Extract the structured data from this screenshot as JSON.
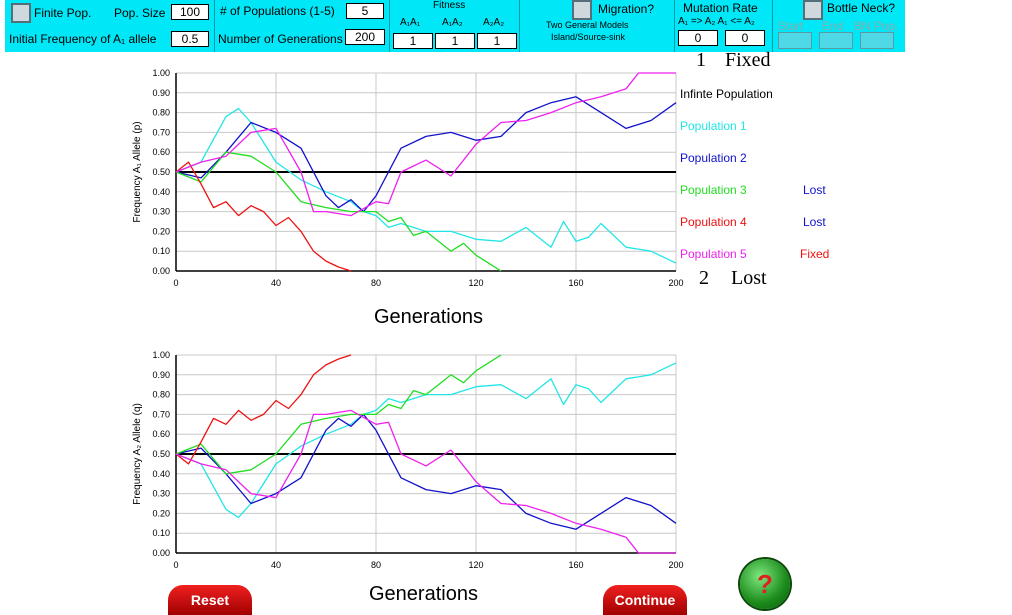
{
  "toolbar": {
    "finite_pop": "Finite Pop.",
    "pop_size_label": "Pop. Size",
    "pop_size": "100",
    "num_pops_label": "# of Populations (1-5)",
    "num_pops": "5",
    "init_freq_label": "Initial  Frequency  of A₁ allele",
    "init_freq": "0.5",
    "num_gens_label": "Number of Generations",
    "num_gens": "200",
    "fitness_label": "Fitness",
    "g11": "A₁A₁",
    "g12": "A₁A₂",
    "g22": "A₂A₂",
    "w11": "1",
    "w12": "1",
    "w22": "1",
    "migration_label": "Migration?",
    "two_models": "Two General Models",
    "island": "Island/Source-sink",
    "mutation_label": "Mutation Rate",
    "mutation_dir": "A₁ => A₂ A₁ <= A₂",
    "mu1": "0",
    "mu2": "0",
    "bottleneck_label": "Bottle Neck?",
    "start": "Start",
    "end": "End",
    "bn_pop": "BN Pop."
  },
  "summary": {
    "fixed_count": "1",
    "fixed_label": "Fixed",
    "lost_count": "2",
    "lost_label": "Lost"
  },
  "legend": {
    "infinite": "Infinte Population",
    "p1": "Population 1",
    "p2": "Population 2",
    "p3": "Population 3",
    "p4": "Population 4",
    "p5": "Population 5",
    "p3_status": "Lost",
    "p4_status": "Lost",
    "p5_status": "Fixed"
  },
  "buttons": {
    "reset": "Reset",
    "continue": "Continue",
    "help": "?"
  },
  "colors": {
    "toolbar": "#00e8f8",
    "infinite": "#000000",
    "p1": "#22e6e6",
    "p2": "#1111cc",
    "p3": "#22dd22",
    "p4": "#ee1111",
    "p5": "#ee22ee"
  },
  "chart_data": [
    {
      "type": "line",
      "title": "",
      "xlabel": "Generations",
      "ylabel": "Frequency A₁ Allele (p)",
      "xlim": [
        0,
        200
      ],
      "ylim": [
        0,
        1
      ],
      "x_ticks": [
        "0",
        "40",
        "80",
        "120",
        "160",
        "200"
      ],
      "y_ticks": [
        "0.00",
        "0.10",
        "0.20",
        "0.30",
        "0.40",
        "0.50",
        "0.60",
        "0.70",
        "0.80",
        "0.90",
        "1.00"
      ],
      "grid": true,
      "series": [
        {
          "name": "Infinte Population",
          "color": "#000000",
          "x": [
            0,
            200
          ],
          "y": [
            0.5,
            0.5
          ]
        },
        {
          "name": "Population 1",
          "color": "#22e6e6",
          "x": [
            0,
            10,
            20,
            25,
            30,
            40,
            50,
            60,
            70,
            75,
            80,
            85,
            90,
            100,
            110,
            120,
            130,
            140,
            150,
            155,
            160,
            165,
            170,
            180,
            190,
            200
          ],
          "y": [
            0.5,
            0.55,
            0.78,
            0.82,
            0.75,
            0.55,
            0.46,
            0.4,
            0.35,
            0.3,
            0.28,
            0.22,
            0.24,
            0.2,
            0.2,
            0.16,
            0.15,
            0.22,
            0.12,
            0.25,
            0.15,
            0.17,
            0.24,
            0.12,
            0.1,
            0.04
          ]
        },
        {
          "name": "Population 2",
          "color": "#1111cc",
          "x": [
            0,
            10,
            20,
            30,
            40,
            50,
            60,
            65,
            70,
            75,
            80,
            90,
            100,
            110,
            120,
            130,
            140,
            150,
            160,
            170,
            180,
            190,
            200
          ],
          "y": [
            0.5,
            0.47,
            0.6,
            0.75,
            0.7,
            0.62,
            0.38,
            0.32,
            0.36,
            0.3,
            0.38,
            0.62,
            0.68,
            0.7,
            0.66,
            0.68,
            0.8,
            0.85,
            0.88,
            0.8,
            0.72,
            0.76,
            0.85
          ]
        },
        {
          "name": "Population 3",
          "color": "#22dd22",
          "x": [
            0,
            10,
            20,
            30,
            40,
            50,
            60,
            70,
            80,
            85,
            90,
            95,
            100,
            110,
            115,
            120,
            125,
            130
          ],
          "y": [
            0.5,
            0.45,
            0.6,
            0.58,
            0.5,
            0.35,
            0.32,
            0.3,
            0.3,
            0.25,
            0.27,
            0.18,
            0.2,
            0.1,
            0.14,
            0.08,
            0.04,
            0
          ]
        },
        {
          "name": "Population 4",
          "color": "#ee1111",
          "x": [
            0,
            5,
            10,
            15,
            20,
            25,
            30,
            35,
            40,
            45,
            50,
            55,
            60,
            65,
            70
          ],
          "y": [
            0.5,
            0.55,
            0.44,
            0.32,
            0.35,
            0.28,
            0.33,
            0.3,
            0.23,
            0.27,
            0.2,
            0.1,
            0.05,
            0.02,
            0
          ]
        },
        {
          "name": "Population 5",
          "color": "#ee22ee",
          "x": [
            0,
            10,
            20,
            30,
            40,
            50,
            55,
            60,
            70,
            80,
            85,
            90,
            100,
            110,
            120,
            130,
            140,
            150,
            160,
            170,
            180,
            185,
            200
          ],
          "y": [
            0.5,
            0.55,
            0.58,
            0.7,
            0.72,
            0.5,
            0.3,
            0.3,
            0.28,
            0.35,
            0.34,
            0.5,
            0.56,
            0.48,
            0.64,
            0.75,
            0.76,
            0.8,
            0.85,
            0.88,
            0.92,
            1,
            1
          ]
        }
      ]
    },
    {
      "type": "line",
      "title": "",
      "xlabel": "Generations",
      "ylabel": "Frequency A₂ Allele (q)",
      "xlim": [
        0,
        200
      ],
      "ylim": [
        0,
        1
      ],
      "x_ticks": [
        "0",
        "40",
        "80",
        "120",
        "160",
        "200"
      ],
      "y_ticks": [
        "0.00",
        "0.10",
        "0.20",
        "0.30",
        "0.40",
        "0.50",
        "0.60",
        "0.70",
        "0.80",
        "0.90",
        "1.00"
      ],
      "grid": true,
      "series": [
        {
          "name": "Infinte Population",
          "color": "#000000",
          "x": [
            0,
            200
          ],
          "y": [
            0.5,
            0.5
          ]
        },
        {
          "name": "Population 1",
          "color": "#22e6e6",
          "x": [
            0,
            10,
            20,
            25,
            30,
            40,
            50,
            60,
            70,
            75,
            80,
            85,
            90,
            100,
            110,
            120,
            130,
            140,
            150,
            155,
            160,
            165,
            170,
            180,
            190,
            200
          ],
          "y": [
            0.5,
            0.45,
            0.22,
            0.18,
            0.25,
            0.45,
            0.54,
            0.6,
            0.65,
            0.7,
            0.72,
            0.78,
            0.76,
            0.8,
            0.8,
            0.84,
            0.85,
            0.78,
            0.88,
            0.75,
            0.85,
            0.83,
            0.76,
            0.88,
            0.9,
            0.96
          ]
        },
        {
          "name": "Population 2",
          "color": "#1111cc",
          "x": [
            0,
            10,
            20,
            30,
            40,
            50,
            60,
            65,
            70,
            75,
            80,
            90,
            100,
            110,
            120,
            130,
            140,
            150,
            160,
            170,
            180,
            190,
            200
          ],
          "y": [
            0.5,
            0.53,
            0.4,
            0.25,
            0.3,
            0.38,
            0.62,
            0.68,
            0.64,
            0.7,
            0.62,
            0.38,
            0.32,
            0.3,
            0.34,
            0.32,
            0.2,
            0.15,
            0.12,
            0.2,
            0.28,
            0.24,
            0.15
          ]
        },
        {
          "name": "Population 3",
          "color": "#22dd22",
          "x": [
            0,
            10,
            20,
            30,
            40,
            50,
            60,
            70,
            80,
            85,
            90,
            95,
            100,
            110,
            115,
            120,
            125,
            130
          ],
          "y": [
            0.5,
            0.55,
            0.4,
            0.42,
            0.5,
            0.65,
            0.68,
            0.7,
            0.7,
            0.75,
            0.73,
            0.82,
            0.8,
            0.9,
            0.86,
            0.92,
            0.96,
            1
          ]
        },
        {
          "name": "Population 4",
          "color": "#ee1111",
          "x": [
            0,
            5,
            10,
            15,
            20,
            25,
            30,
            35,
            40,
            45,
            50,
            55,
            60,
            65,
            70
          ],
          "y": [
            0.5,
            0.45,
            0.56,
            0.68,
            0.65,
            0.72,
            0.67,
            0.7,
            0.77,
            0.73,
            0.8,
            0.9,
            0.95,
            0.98,
            1
          ]
        },
        {
          "name": "Population 5",
          "color": "#ee22ee",
          "x": [
            0,
            10,
            20,
            30,
            40,
            50,
            55,
            60,
            70,
            80,
            85,
            90,
            100,
            110,
            120,
            130,
            140,
            150,
            160,
            170,
            180,
            185,
            200
          ],
          "y": [
            0.5,
            0.45,
            0.42,
            0.3,
            0.28,
            0.5,
            0.7,
            0.7,
            0.72,
            0.65,
            0.66,
            0.5,
            0.44,
            0.52,
            0.36,
            0.25,
            0.24,
            0.2,
            0.15,
            0.12,
            0.08,
            0,
            0
          ]
        }
      ]
    }
  ]
}
